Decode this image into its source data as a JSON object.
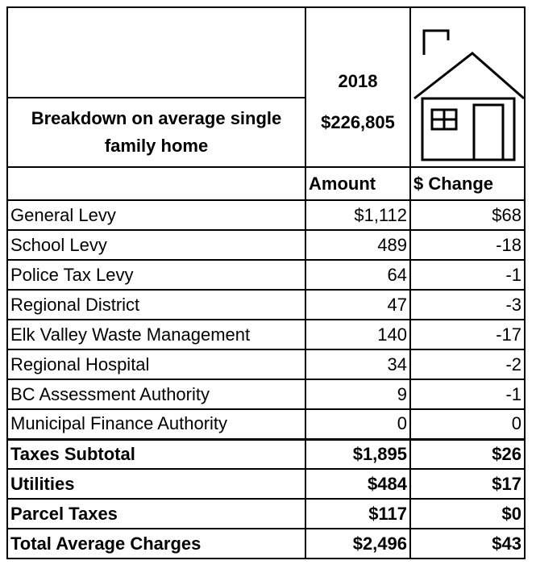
{
  "header": {
    "title": "Breakdown on average single family home",
    "year": "2018",
    "home_value": "$226,805"
  },
  "columns": [
    "Amount",
    "$ Change"
  ],
  "rows": [
    [
      "General Levy",
      "$1,112",
      "$68"
    ],
    [
      "School Levy",
      "489",
      "-18"
    ],
    [
      "Police Tax Levy",
      "64",
      "-1"
    ],
    [
      "Regional District",
      "47",
      "-3"
    ],
    [
      "Elk Valley Waste Management",
      "140",
      "-17"
    ],
    [
      "Regional Hospital",
      "34",
      "-2"
    ],
    [
      "BC Assessment Authority",
      "9",
      "-1"
    ],
    [
      "Municipal Finance Authority",
      "0",
      "0"
    ],
    [
      "Taxes Subtotal",
      "$1,895",
      "$26"
    ],
    [
      "Utilities",
      "$484",
      "$17"
    ],
    [
      "Parcel Taxes",
      "$117",
      "$0"
    ],
    [
      "Total Average Charges",
      "$2,496",
      "$43"
    ]
  ]
}
